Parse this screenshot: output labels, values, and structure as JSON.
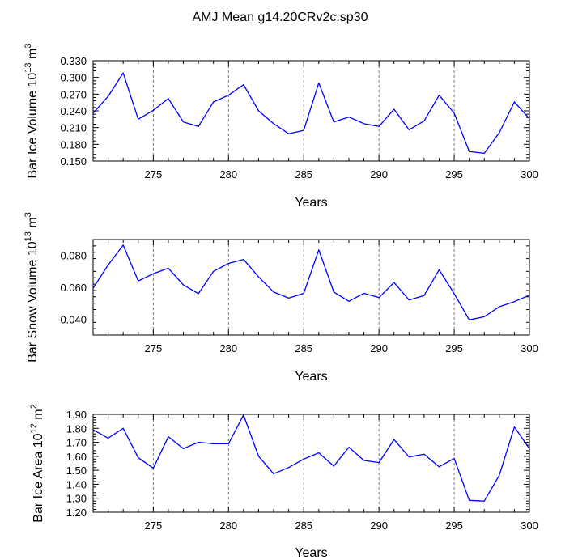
{
  "figure_title": "AMJ Mean g14.20CRv2c.sp30",
  "line_color": "#0000ff",
  "chart_data": [
    {
      "type": "line",
      "xlabel": "Years",
      "ylabel": "Bar Ice Volume 10",
      "ylabel_sup": "13",
      "ylabel_unit": " m",
      "ylabel_unit_sup": "3",
      "xlim": [
        271,
        300
      ],
      "ylim": [
        0.15,
        0.33
      ],
      "xticks": [
        275,
        280,
        285,
        290,
        295,
        300
      ],
      "xtick_labels": [
        "275",
        "280",
        "285",
        "290",
        "295",
        "300"
      ],
      "yticks": [
        0.15,
        0.18,
        0.21,
        0.24,
        0.27,
        0.3,
        0.33
      ],
      "ytick_labels": [
        "0.150",
        "0.180",
        "0.210",
        "0.240",
        "0.270",
        "0.300",
        "0.330"
      ],
      "x": [
        271,
        272,
        273,
        274,
        275,
        276,
        277,
        278,
        279,
        280,
        281,
        282,
        283,
        284,
        285,
        286,
        287,
        288,
        289,
        290,
        291,
        292,
        293,
        294,
        295,
        296,
        297,
        298,
        299,
        300
      ],
      "values": [
        0.236,
        0.266,
        0.308,
        0.225,
        0.241,
        0.262,
        0.22,
        0.212,
        0.256,
        0.268,
        0.287,
        0.24,
        0.217,
        0.199,
        0.205,
        0.29,
        0.22,
        0.229,
        0.217,
        0.212,
        0.243,
        0.206,
        0.222,
        0.268,
        0.236,
        0.167,
        0.164,
        0.201,
        0.256,
        0.226
      ]
    },
    {
      "type": "line",
      "xlabel": "Years",
      "ylabel": "Bar Snow Volume 10",
      "ylabel_sup": "13",
      "ylabel_unit": " m",
      "ylabel_unit_sup": "3",
      "xlim": [
        271,
        300
      ],
      "ylim": [
        0.03,
        0.09
      ],
      "xticks": [
        275,
        280,
        285,
        290,
        295,
        300
      ],
      "xtick_labels": [
        "275",
        "280",
        "285",
        "290",
        "295",
        "300"
      ],
      "yticks": [
        0.04,
        0.06,
        0.08
      ],
      "ytick_labels": [
        "0.040",
        "0.060",
        "0.080"
      ],
      "x": [
        271,
        272,
        273,
        274,
        275,
        276,
        277,
        278,
        279,
        280,
        281,
        282,
        283,
        284,
        285,
        286,
        287,
        288,
        289,
        290,
        291,
        292,
        293,
        294,
        295,
        296,
        297,
        298,
        299,
        300
      ],
      "values": [
        0.0595,
        0.074,
        0.0865,
        0.064,
        0.0685,
        0.072,
        0.0615,
        0.056,
        0.07,
        0.075,
        0.0775,
        0.0665,
        0.057,
        0.0532,
        0.0562,
        0.0835,
        0.057,
        0.0512,
        0.0562,
        0.0535,
        0.063,
        0.052,
        0.0548,
        0.071,
        0.056,
        0.0395,
        0.0415,
        0.0478,
        0.051,
        0.055
      ]
    },
    {
      "type": "line",
      "xlabel": "Years",
      "ylabel": "Bar Ice Area 10",
      "ylabel_sup": "12",
      "ylabel_unit": " m",
      "ylabel_unit_sup": "2",
      "xlim": [
        271,
        300
      ],
      "ylim": [
        1.2,
        1.9
      ],
      "xticks": [
        275,
        280,
        285,
        290,
        295,
        300
      ],
      "xtick_labels": [
        "275",
        "280",
        "285",
        "290",
        "295",
        "300"
      ],
      "yticks": [
        1.2,
        1.3,
        1.4,
        1.5,
        1.6,
        1.7,
        1.8,
        1.9
      ],
      "ytick_labels": [
        "1.20",
        "1.30",
        "1.40",
        "1.50",
        "1.60",
        "1.70",
        "1.80",
        "1.90"
      ],
      "x": [
        271,
        272,
        273,
        274,
        275,
        276,
        277,
        278,
        279,
        280,
        281,
        282,
        283,
        284,
        285,
        286,
        287,
        288,
        289,
        290,
        291,
        292,
        293,
        294,
        295,
        296,
        297,
        298,
        299,
        300
      ],
      "values": [
        1.79,
        1.73,
        1.8,
        1.59,
        1.515,
        1.74,
        1.655,
        1.7,
        1.69,
        1.69,
        1.895,
        1.6,
        1.475,
        1.52,
        1.58,
        1.625,
        1.53,
        1.665,
        1.57,
        1.555,
        1.72,
        1.595,
        1.615,
        1.525,
        1.585,
        1.285,
        1.28,
        1.465,
        1.81,
        1.655
      ]
    }
  ]
}
